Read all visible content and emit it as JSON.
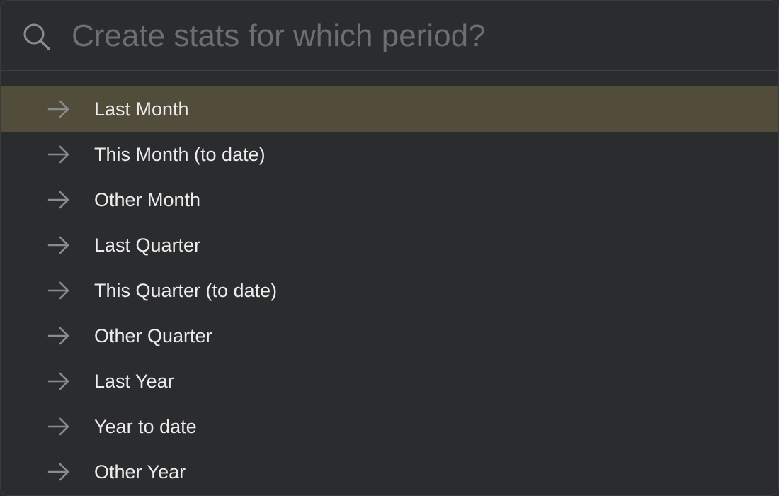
{
  "search": {
    "placeholder": "Create stats for which period?",
    "value": ""
  },
  "colors": {
    "background": "#2b2c2e",
    "selected_row": "#524c3b",
    "text": "#ececec",
    "placeholder": "#6d6e71",
    "icon": "#8a8b8e"
  },
  "icons": {
    "search": "search-icon",
    "item": "arrow-right-icon"
  },
  "items": [
    {
      "label": "Last Month",
      "selected": true
    },
    {
      "label": "This Month (to date)",
      "selected": false
    },
    {
      "label": "Other Month",
      "selected": false
    },
    {
      "label": "Last Quarter",
      "selected": false
    },
    {
      "label": "This Quarter (to date)",
      "selected": false
    },
    {
      "label": "Other Quarter",
      "selected": false
    },
    {
      "label": "Last Year",
      "selected": false
    },
    {
      "label": "Year to date",
      "selected": false
    },
    {
      "label": "Other Year",
      "selected": false
    }
  ]
}
